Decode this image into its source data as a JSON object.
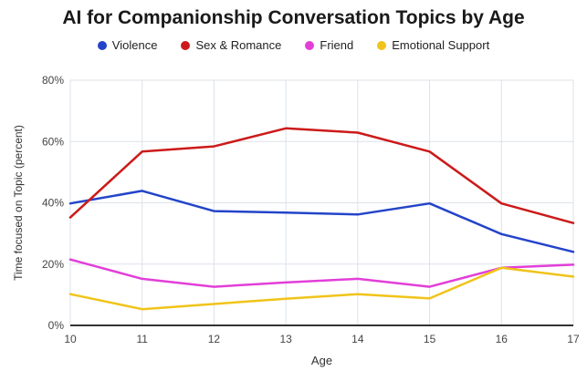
{
  "chart_data": {
    "type": "line",
    "title": "AI for Companionship Conversation Topics by Age",
    "xlabel": "Age",
    "ylabel": "Time focused on Topic (percent)",
    "x": [
      10,
      11,
      12,
      13,
      14,
      15,
      16,
      17
    ],
    "x_tick_labels": [
      "10",
      "11",
      "12",
      "13",
      "14",
      "15",
      "16",
      "17"
    ],
    "ylim": [
      0,
      80
    ],
    "y_ticks": [
      0,
      20,
      40,
      60,
      80
    ],
    "y_tick_labels": [
      "0%",
      "20%",
      "40%",
      "60%",
      "80%"
    ],
    "grid": true,
    "legend_position": "top",
    "series": [
      {
        "name": "Violence",
        "color": "#2344c9",
        "values": [
          39.8,
          43.9,
          37.3,
          36.8,
          36.2,
          39.8,
          29.8,
          24.0
        ]
      },
      {
        "name": "Sex & Romance",
        "color": "#cc1a1a",
        "values": [
          35.2,
          56.7,
          58.4,
          64.3,
          62.9,
          56.7,
          39.8,
          33.4
        ]
      },
      {
        "name": "Friend",
        "color": "#e23fd8",
        "values": [
          21.5,
          15.2,
          12.6,
          14.0,
          15.2,
          12.6,
          18.8,
          19.8
        ]
      },
      {
        "name": "Emotional Support",
        "color": "#f0c419",
        "values": [
          10.2,
          5.3,
          7.0,
          8.7,
          10.2,
          8.8,
          18.8,
          15.9
        ]
      }
    ]
  }
}
